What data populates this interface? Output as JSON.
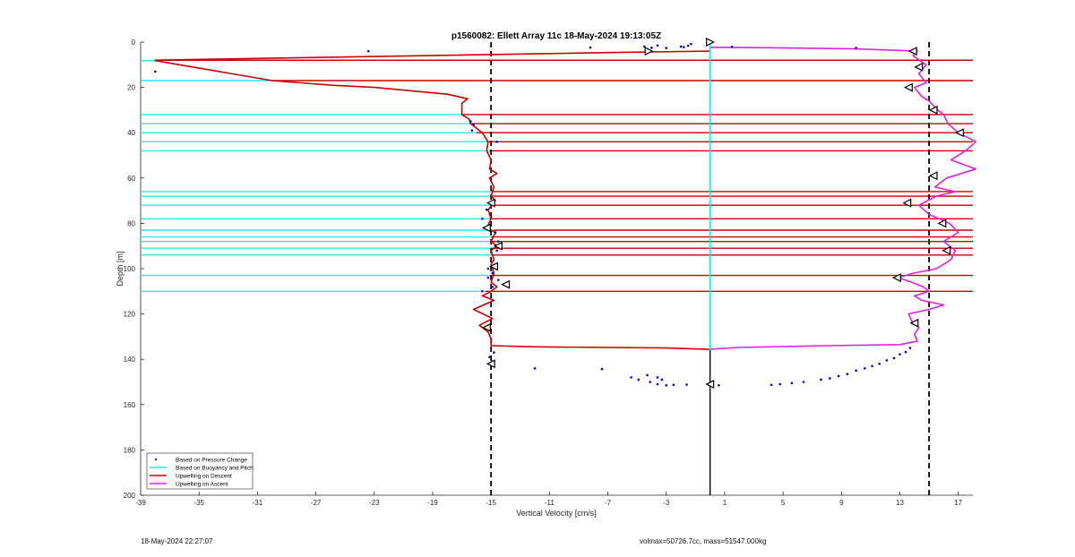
{
  "chart_data": {
    "type": "line",
    "title": "p1560082: Ellett Array 11c 18-May-2024 19:13:05Z",
    "xlabel": "Vertical Velocity [cm/s]",
    "ylabel": "Depth [m]",
    "xlim": [
      -39,
      18
    ],
    "ylim": [
      0,
      200
    ],
    "y_reversed": true,
    "xticks": [
      -39,
      -35,
      -31,
      -27,
      -23,
      -19,
      -15,
      -11,
      -7,
      -3,
      1,
      5,
      9,
      13,
      17
    ],
    "yticks": [
      0,
      20,
      40,
      60,
      80,
      100,
      120,
      140,
      160,
      180,
      200
    ],
    "grid": false,
    "legend_position": "bottom-left",
    "threshold_lines": [
      -15,
      15
    ],
    "zero_line": {
      "x": 0,
      "depth_range": [
        0,
        200
      ]
    },
    "legend": [
      {
        "label": "Based on Pressure Change",
        "color": "#0000cc",
        "style": "dot"
      },
      {
        "label": "Based on Buoyancy and Pitch",
        "color": "#2ce6ea",
        "style": "line"
      },
      {
        "label": "Upwelling on Descent",
        "color": "#cc0000",
        "style": "line"
      },
      {
        "label": "Upwelling on Ascent",
        "color": "#e020e0",
        "style": "line"
      }
    ],
    "series": [
      {
        "name": "Upwelling on Descent",
        "color": "#cc0000",
        "points": [
          [
            0,
            4
          ],
          [
            -6,
            4.5
          ],
          [
            -38,
            8
          ],
          [
            -38,
            8.2
          ],
          [
            -30,
            17
          ],
          [
            -26,
            19
          ],
          [
            -23,
            20
          ],
          [
            -18,
            23
          ],
          [
            -16.6,
            25
          ],
          [
            -17,
            27
          ],
          [
            -17,
            32
          ],
          [
            -16.5,
            34
          ],
          [
            -16.4,
            36
          ],
          [
            -16,
            38
          ],
          [
            -15.6,
            40
          ],
          [
            -15.2,
            44
          ],
          [
            -15.3,
            48
          ],
          [
            -15,
            52
          ],
          [
            -15.1,
            56
          ],
          [
            -14.6,
            58
          ],
          [
            -15.1,
            60
          ],
          [
            -14.8,
            64
          ],
          [
            -15,
            68
          ],
          [
            -14.7,
            70
          ],
          [
            -15.2,
            74
          ],
          [
            -15,
            78
          ],
          [
            -15.3,
            82
          ],
          [
            -14.7,
            84
          ],
          [
            -15,
            88
          ],
          [
            -14.6,
            90
          ],
          [
            -15,
            92
          ],
          [
            -14.8,
            96
          ],
          [
            -15,
            98
          ],
          [
            -14.8,
            102
          ],
          [
            -15,
            106
          ],
          [
            -14.6,
            108
          ],
          [
            -15,
            110
          ],
          [
            -15.6,
            112
          ],
          [
            -14.8,
            114
          ],
          [
            -16.2,
            118
          ],
          [
            -14.9,
            122
          ],
          [
            -15.8,
            125
          ],
          [
            -15.2,
            128
          ],
          [
            -15,
            131
          ],
          [
            -15,
            134
          ],
          [
            -12,
            134.5
          ],
          [
            -3,
            135
          ],
          [
            0,
            135.6
          ]
        ]
      },
      {
        "name": "Upwelling on Ascent",
        "color": "#e020e0",
        "points": [
          [
            0,
            135.6
          ],
          [
            2,
            134.8
          ],
          [
            8,
            134
          ],
          [
            13,
            133.5
          ],
          [
            14.2,
            132
          ],
          [
            14,
            129
          ],
          [
            14.3,
            126
          ],
          [
            13.8,
            123
          ],
          [
            13.6,
            120
          ],
          [
            15,
            118
          ],
          [
            16,
            116
          ],
          [
            14.5,
            114
          ],
          [
            14,
            112
          ],
          [
            15,
            110
          ],
          [
            14.6,
            108
          ],
          [
            13.8,
            106
          ],
          [
            12.9,
            104
          ],
          [
            13.9,
            102
          ],
          [
            15.5,
            100
          ],
          [
            16.5,
            96
          ],
          [
            16.8,
            92
          ],
          [
            16,
            88
          ],
          [
            17,
            84
          ],
          [
            16.4,
            80
          ],
          [
            15,
            76
          ],
          [
            14.3,
            72
          ],
          [
            15.5,
            68
          ],
          [
            16.8,
            66
          ],
          [
            15.4,
            64
          ],
          [
            16.2,
            60
          ],
          [
            18.2,
            56
          ],
          [
            16.5,
            52
          ],
          [
            17.5,
            48
          ],
          [
            18.2,
            44
          ],
          [
            17,
            40
          ],
          [
            16.3,
            36
          ],
          [
            16,
            32
          ],
          [
            15.6,
            30
          ],
          [
            15,
            26
          ],
          [
            14.5,
            24
          ],
          [
            14,
            20
          ],
          [
            14.8,
            18
          ],
          [
            14.3,
            14
          ],
          [
            14.8,
            10
          ],
          [
            13.9,
            6
          ],
          [
            14.2,
            4
          ],
          [
            10,
            3
          ],
          [
            4,
            2.5
          ],
          [
            0,
            2.3
          ]
        ]
      },
      {
        "name": "Based on Buoyancy and Pitch",
        "color": "#2ce6ea",
        "points": [
          [
            0,
            0
          ],
          [
            0,
            136
          ]
        ]
      },
      {
        "name": "Based on Pressure Change",
        "color": "#0000cc",
        "type": "scatter",
        "points": [
          [
            -38,
            13
          ],
          [
            -23.4,
            4
          ],
          [
            -8.2,
            2.4
          ],
          [
            -4.5,
            2
          ],
          [
            -4,
            2.5
          ],
          [
            -3.6,
            1.5
          ],
          [
            -3,
            2.6
          ],
          [
            -2,
            2
          ],
          [
            -1.8,
            2.2
          ],
          [
            -1.5,
            1.6
          ],
          [
            -1.3,
            0.8
          ],
          [
            1.5,
            2.1
          ],
          [
            10,
            2.6
          ],
          [
            -16.4,
            35
          ],
          [
            -16.2,
            36.5
          ],
          [
            -16.3,
            39
          ],
          [
            -14.6,
            44
          ],
          [
            -15.3,
            74
          ],
          [
            -15.6,
            78
          ],
          [
            -14.7,
            84
          ],
          [
            -14.5,
            88
          ],
          [
            -14.6,
            92
          ],
          [
            -15.2,
            100
          ],
          [
            -14.9,
            102
          ],
          [
            -15.2,
            104
          ],
          [
            -14.5,
            105
          ],
          [
            -14.9,
            108
          ],
          [
            -15.6,
            110
          ],
          [
            -14.8,
            137
          ],
          [
            -15.1,
            139
          ],
          [
            -14.9,
            141
          ],
          [
            -12,
            144
          ],
          [
            -7.4,
            144.3
          ],
          [
            -5.4,
            148
          ],
          [
            -4.9,
            149
          ],
          [
            -4.3,
            147
          ],
          [
            -4.1,
            150
          ],
          [
            -3.6,
            148
          ],
          [
            -3.3,
            149
          ],
          [
            -3.6,
            151
          ],
          [
            -3,
            151.5
          ],
          [
            -2.5,
            151.3
          ],
          [
            -1.6,
            151.2
          ],
          [
            0.6,
            151.5
          ],
          [
            4.2,
            151.3
          ],
          [
            4.8,
            151
          ],
          [
            5.6,
            150.5
          ],
          [
            6.4,
            150
          ],
          [
            7.6,
            149
          ],
          [
            8.2,
            148.4
          ],
          [
            8.8,
            147.4
          ],
          [
            9.4,
            146.5
          ],
          [
            10,
            145
          ],
          [
            10.6,
            144
          ],
          [
            11.1,
            143
          ],
          [
            11.6,
            142
          ],
          [
            12.1,
            140.5
          ],
          [
            12.6,
            139.5
          ],
          [
            13,
            137.8
          ],
          [
            13.4,
            136.8
          ],
          [
            13.7,
            135
          ]
        ]
      }
    ],
    "markers": {
      "descent": [
        [
          -15,
          71
        ],
        [
          -15.3,
          82
        ],
        [
          -14.5,
          90
        ],
        [
          -14.8,
          99
        ],
        [
          -14,
          107
        ],
        [
          -15.3,
          126
        ],
        [
          -15,
          142
        ]
      ],
      "ascent": [
        [
          13.9,
          4
        ],
        [
          14.3,
          11
        ],
        [
          13.6,
          20
        ],
        [
          15.3,
          30
        ],
        [
          17.1,
          40
        ],
        [
          15.3,
          59
        ],
        [
          13.5,
          71
        ],
        [
          15.9,
          80
        ],
        [
          16.2,
          92
        ],
        [
          12.8,
          104
        ],
        [
          14,
          124
        ],
        [
          0,
          151
        ]
      ],
      "surface": [
        [
          -4.2,
          4
        ],
        [
          0,
          0
        ]
      ]
    },
    "horizontal_bands": {
      "cyan_segments": [
        [
          8.2,
          -38
        ],
        [
          17,
          -30
        ],
        [
          32,
          -17
        ],
        [
          36,
          -16.4
        ],
        [
          40,
          -16
        ],
        [
          44,
          -15.3
        ],
        [
          48,
          -15.1
        ],
        [
          66,
          -15
        ],
        [
          68,
          -15
        ],
        [
          72,
          -15
        ],
        [
          78,
          -15.1
        ],
        [
          83,
          -14.8
        ],
        [
          86,
          -15
        ],
        [
          88,
          -15
        ],
        [
          91,
          -15
        ],
        [
          94,
          -15
        ],
        [
          103,
          -15
        ],
        [
          110,
          -15.4
        ]
      ],
      "red_depths": [
        8,
        17,
        32,
        36,
        40,
        44,
        48,
        66,
        68,
        72,
        78,
        83,
        86,
        88,
        91,
        94,
        103,
        110
      ]
    }
  },
  "footer": {
    "timestamp": "18-May-2024 22:27:07",
    "vessel_info": "volmax=50726.7cc, mass=51547.000kg"
  }
}
